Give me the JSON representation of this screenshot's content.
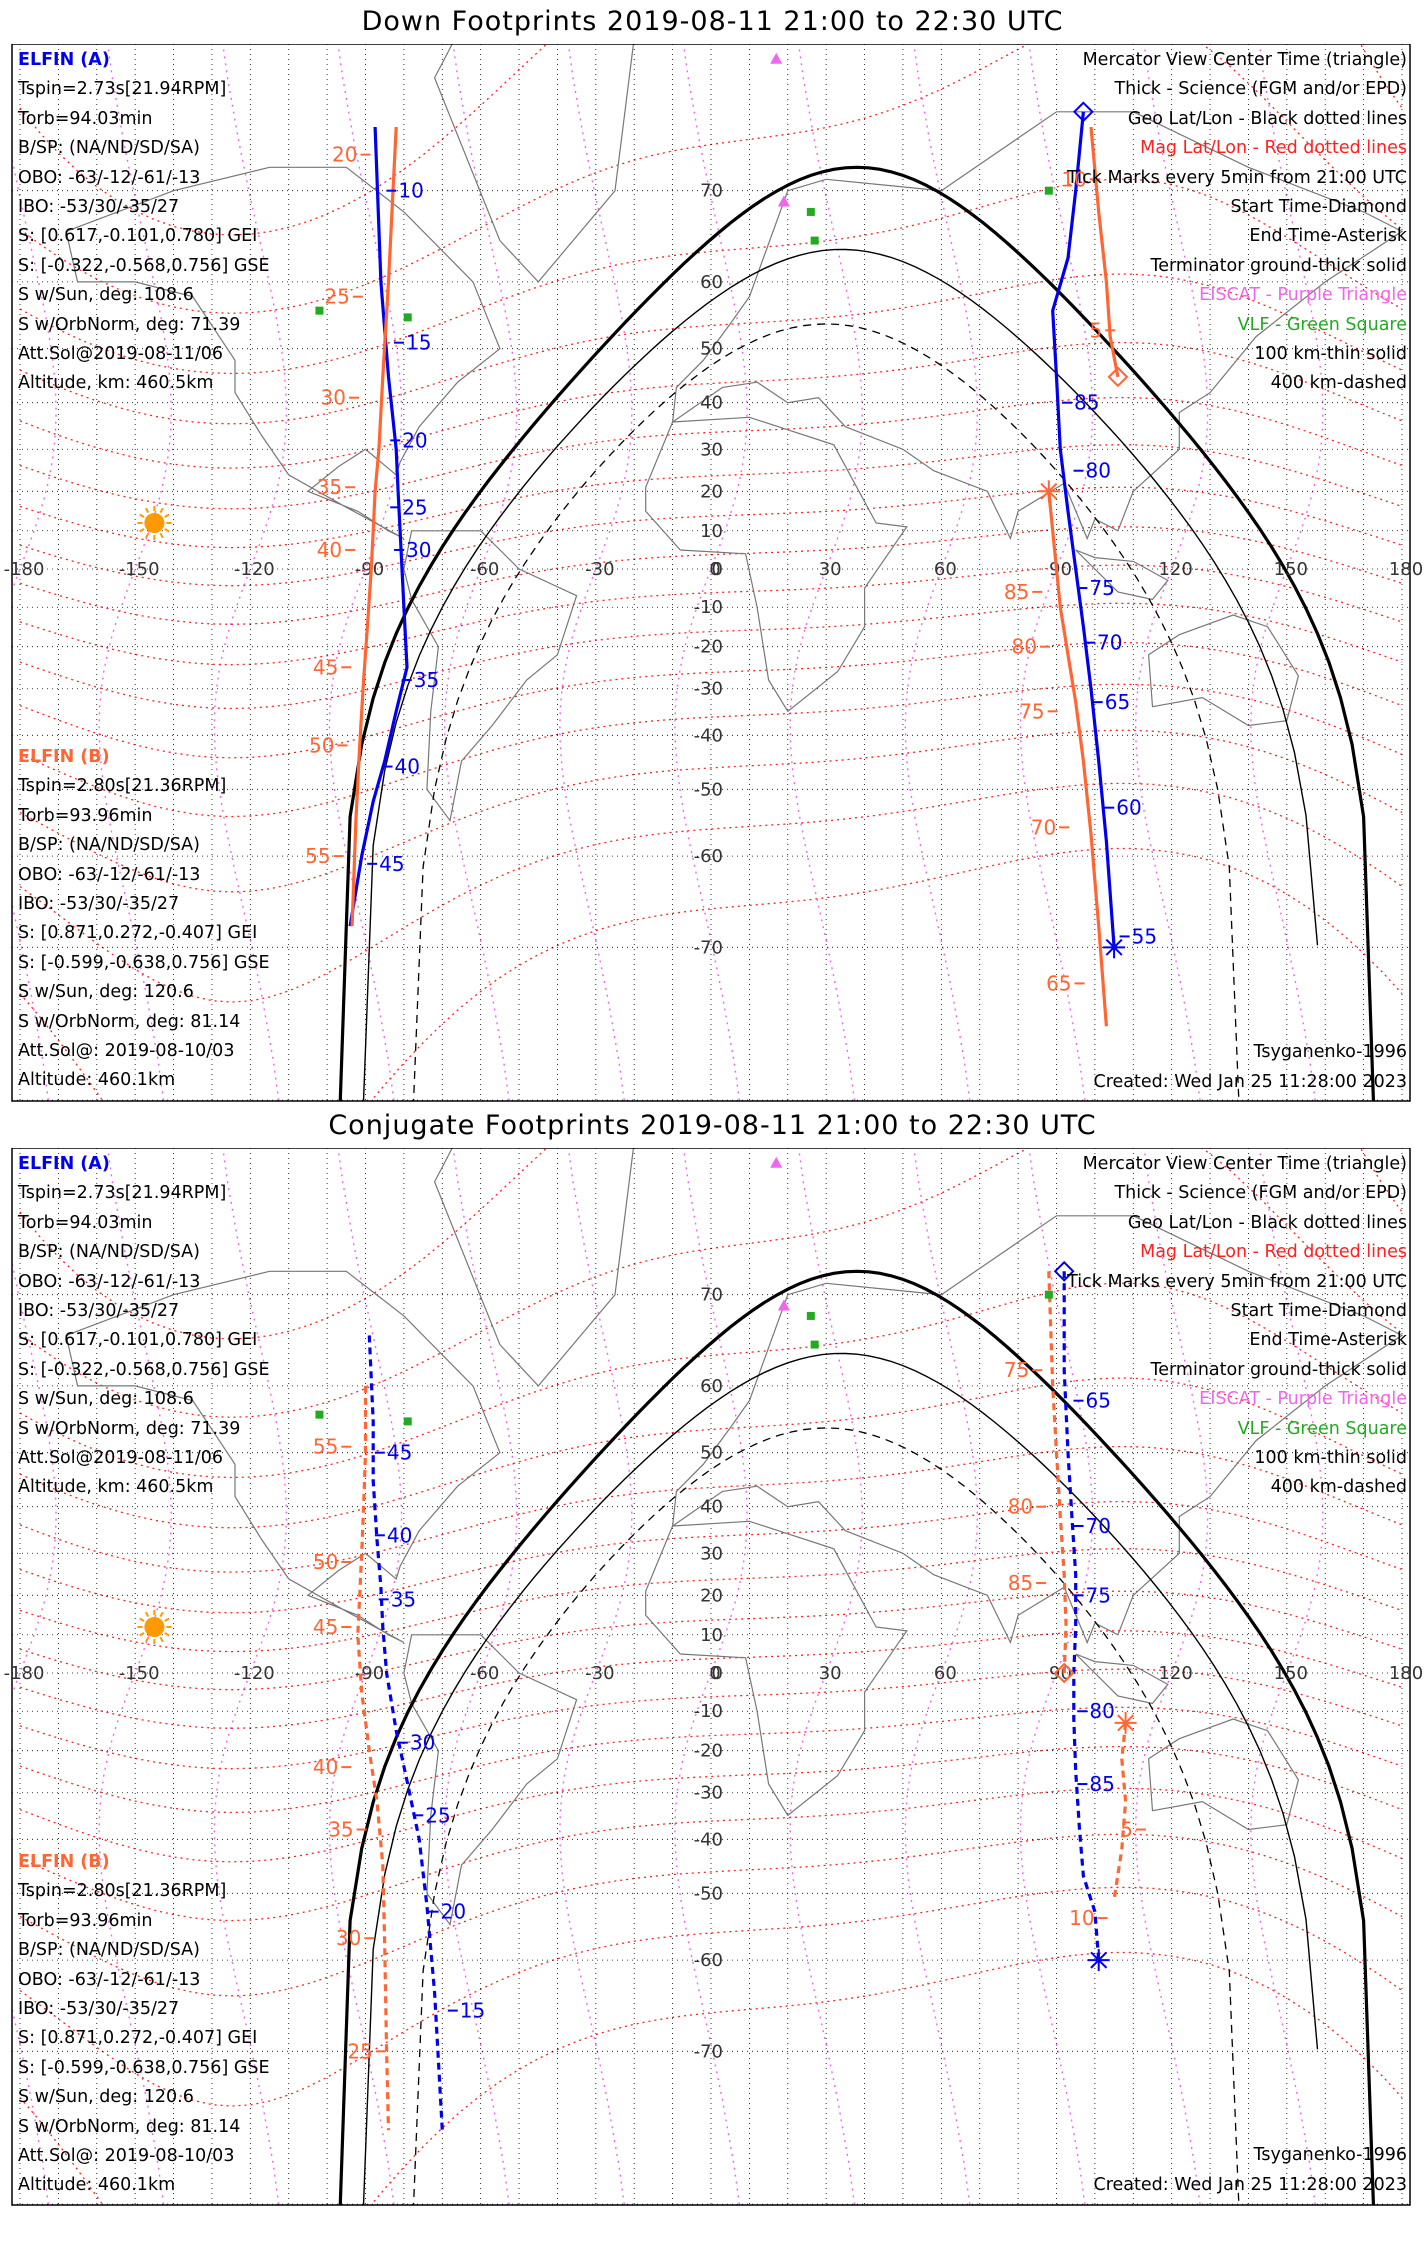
{
  "colors": {
    "mag": "#ff2020",
    "geo": "#000000",
    "esca": "#ee66ee",
    "vlf": "#22aa22",
    "elfin_a": "#0000ee",
    "elfin_b": "#ff6633",
    "sun": "#ff9900",
    "land": "#777777"
  },
  "panels": [
    {
      "title": "Down Footprints 2019-08-11 21:00 to 22:30 UTC",
      "info_a": [
        "ELFIN (A)",
        "Tspin=2.73s[21.94RPM]",
        "Torb=94.03min",
        "B/SP: (NA/ND/SD/SA)",
        "OBO: -63/-12/-61/-13",
        "IBO: -53/30/-35/27",
        "S: [0.617,-0.101,0.780] GEI",
        "S: [-0.322,-0.568,0.756] GSE",
        "S w/Sun, deg: 108.6",
        "S w/OrbNorm, deg: 71.39",
        "Att.Sol@2019-08-11/06",
        "Altitude, km: 460.5km"
      ],
      "info_b": [
        "ELFIN (B)",
        "Tspin=2.80s[21.36RPM]",
        "Torb=93.96min",
        "B/SP: (NA/ND/SD/SA)",
        "OBO: -63/-12/-61/-13",
        "IBO: -53/30/-35/27",
        "S: [0.871,0.272,-0.407] GEI",
        "S: [-0.599,-0.638,0.756] GSE",
        "S w/Sun, deg: 120.6",
        "S w/OrbNorm, deg: 81.14",
        "Att.Sol@: 2019-08-10/03",
        "Altitude: 460.1km"
      ],
      "legend": [
        "Mercator View Center Time (triangle)",
        "Thick - Science (FGM and/or EPD)",
        "Geo Lat/Lon - Black dotted lines",
        "Mag Lat/Lon - Red dotted lines",
        "Tick Marks every 5min from 21:00 UTC",
        "Start Time-Diamond",
        "End Time-Asterisk",
        "Terminator ground-thick solid",
        "EISCAT - Purple Triangle",
        "VLF - Green Square",
        "100 km-thin solid",
        "400 km-dashed"
      ],
      "model": "Tsyganenko-1996",
      "created": "Created: Wed Jan 25 11:28:00 2023",
      "lon_labels": [
        "-180",
        "-150",
        "-120",
        "-90",
        "-60",
        "-30",
        "0",
        "30",
        "60",
        "90",
        "120",
        "150",
        "180"
      ],
      "lat_labels": [
        "70",
        "60",
        "50",
        "40",
        "30",
        "20",
        "10",
        "0",
        "-10",
        "-20",
        "-30",
        "-40",
        "-50",
        "-60",
        "-70"
      ],
      "track_a_path": [
        [
          -87.5,
          75
        ],
        [
          -86,
          60
        ],
        [
          -84,
          45
        ],
        [
          -82,
          30
        ],
        [
          -81.5,
          20
        ],
        [
          -81,
          10
        ],
        [
          -80.5,
          0
        ],
        [
          -80,
          -10
        ],
        [
          -79.2,
          -25
        ],
        [
          -82,
          -35
        ],
        [
          -85,
          -45
        ],
        [
          -88,
          -52
        ],
        [
          -91,
          -60
        ],
        [
          -94,
          -68
        ]
      ],
      "track_b_path": [
        [
          -82,
          75
        ],
        [
          -84,
          60
        ],
        [
          -85.5,
          45
        ],
        [
          -86.5,
          30
        ],
        [
          -87.5,
          20
        ],
        [
          -88,
          10
        ],
        [
          -88.5,
          0
        ],
        [
          -89.5,
          -15
        ],
        [
          -90.5,
          -28
        ],
        [
          -91.5,
          -42
        ],
        [
          -92.5,
          -55
        ],
        [
          -93.5,
          -68
        ]
      ],
      "track_a2_path": [
        [
          97,
          76
        ],
        [
          95,
          70
        ],
        [
          93,
          63
        ],
        [
          89,
          56
        ],
        [
          90,
          45
        ],
        [
          91,
          30
        ],
        [
          93,
          15
        ],
        [
          95,
          0
        ],
        [
          97,
          -15
        ],
        [
          99,
          -30
        ],
        [
          101,
          -45
        ],
        [
          103,
          -58
        ],
        [
          105,
          -70
        ]
      ],
      "track_b2_path": [
        [
          99,
          75
        ],
        [
          101,
          68
        ],
        [
          103,
          60
        ],
        [
          104,
          52
        ],
        [
          106,
          45
        ]
      ],
      "track_b3_path": [
        [
          88,
          20
        ],
        [
          89,
          10
        ],
        [
          90,
          0
        ],
        [
          91,
          -10
        ],
        [
          93,
          -22
        ],
        [
          95,
          -33
        ],
        [
          97,
          -45
        ],
        [
          99,
          -57
        ],
        [
          101,
          -68
        ],
        [
          103,
          -76
        ]
      ],
      "ticks_a": [
        {
          "label": "10",
          "lon": -83,
          "lat": 70
        },
        {
          "label": "15",
          "lon": -81,
          "lat": 51
        },
        {
          "label": "20",
          "lon": -82,
          "lat": 32
        },
        {
          "label": "25",
          "lon": -82,
          "lat": 16
        },
        {
          "label": "30",
          "lon": -81,
          "lat": 5
        },
        {
          "label": "35",
          "lon": -79,
          "lat": -28
        },
        {
          "label": "40",
          "lon": -84,
          "lat": -46
        },
        {
          "label": "45",
          "lon": -88,
          "lat": -61
        },
        {
          "label": "85",
          "lon": 93,
          "lat": 40
        },
        {
          "label": "80",
          "lon": 96,
          "lat": 25
        },
        {
          "label": "75",
          "lon": 97,
          "lat": -5
        },
        {
          "label": "70",
          "lon": 99,
          "lat": -19
        },
        {
          "label": "65",
          "lon": 101,
          "lat": -33
        },
        {
          "label": "60",
          "lon": 104,
          "lat": -53
        },
        {
          "label": "55",
          "lon": 108,
          "lat": -69
        }
      ],
      "ticks_b": [
        {
          "label": "20",
          "lon": -90,
          "lat": 73
        },
        {
          "label": "25",
          "lon": -92,
          "lat": 58
        },
        {
          "label": "30",
          "lon": -93,
          "lat": 41
        },
        {
          "label": "35",
          "lon": -94,
          "lat": 21
        },
        {
          "label": "40",
          "lon": -94,
          "lat": 5
        },
        {
          "label": "45",
          "lon": -95,
          "lat": -25
        },
        {
          "label": "50",
          "lon": -96,
          "lat": -42
        },
        {
          "label": "55",
          "lon": -97,
          "lat": -60
        },
        {
          "label": "10",
          "lon": 100,
          "lat": 71
        },
        {
          "label": "5",
          "lon": 104,
          "lat": 53
        },
        {
          "label": "85",
          "lon": 85,
          "lat": -6
        },
        {
          "label": "80",
          "lon": 87,
          "lat": -20
        },
        {
          "label": "75",
          "lon": 89,
          "lat": -35
        },
        {
          "label": "70",
          "lon": 92,
          "lat": -56
        },
        {
          "label": "65",
          "lon": 96,
          "lat": -73
        }
      ],
      "sun": {
        "lon": -145,
        "lat": 12
      },
      "esca": [
        {
          "lon": 17,
          "lat": 79
        },
        {
          "lon": 19,
          "lat": 69
        }
      ],
      "vlf": [
        {
          "lon": 26,
          "lat": 68
        },
        {
          "lon": 27,
          "lat": 65
        },
        {
          "lon": 88,
          "lat": 70
        },
        {
          "lon": -102,
          "lat": 56
        },
        {
          "lon": -79,
          "lat": 55
        }
      ]
    },
    {
      "title": "Conjugate Footprints 2019-08-11 21:00 to 22:30 UTC",
      "info_a": [
        "ELFIN (A)",
        "Tspin=2.73s[21.94RPM]",
        "Torb=94.03min",
        "B/SP: (NA/ND/SD/SA)",
        "OBO: -63/-12/-61/-13",
        "IBO: -53/30/-35/27",
        "S: [0.617,-0.101,0.780] GEI",
        "S: [-0.322,-0.568,0.756] GSE",
        "S w/Sun, deg: 108.6",
        "S w/OrbNorm, deg: 71.39",
        "Att.Sol@2019-08-11/06",
        "Altitude, km: 460.5km"
      ],
      "info_b": [
        "ELFIN (B)",
        "Tspin=2.80s[21.36RPM]",
        "Torb=93.96min",
        "B/SP: (NA/ND/SD/SA)",
        "OBO: -63/-12/-61/-13",
        "IBO: -53/30/-35/27",
        "S: [0.871,0.272,-0.407] GEI",
        "S: [-0.599,-0.638,0.756] GSE",
        "S w/Sun, deg: 120.6",
        "S w/OrbNorm, deg: 81.14",
        "Att.Sol@: 2019-08-10/03",
        "Altitude: 460.1km"
      ],
      "legend": [
        "Mercator View Center Time (triangle)",
        "Thick - Science (FGM and/or EPD)",
        "Geo Lat/Lon - Black dotted lines",
        "Mag Lat/Lon - Red dotted lines",
        "Tick Marks every 5min from 21:00 UTC",
        "Start Time-Diamond",
        "End Time-Asterisk",
        "Terminator ground-thick solid",
        "EISCAT - Purple Triangle",
        "VLF - Green Square",
        "100 km-thin solid",
        "400 km-dashed"
      ],
      "model": "Tsyganenko-1996",
      "created": "Created: Wed Jan 25 11:28:00 2023",
      "lon_labels": [
        "-180",
        "-150",
        "-120",
        "-90",
        "-60",
        "-30",
        "0",
        "30",
        "60",
        "90",
        "120",
        "150",
        "180"
      ],
      "lat_labels": [
        "70",
        "60",
        "50",
        "40",
        "30",
        "20",
        "10",
        "0",
        "-10",
        "-20",
        "-30",
        "-40",
        "-50",
        "-60",
        "-70"
      ],
      "track_a_path": [
        [
          -89,
          66
        ],
        [
          -88,
          55
        ],
        [
          -88,
          45
        ],
        [
          -87,
          33
        ],
        [
          -86,
          22
        ],
        [
          -85.5,
          12
        ],
        [
          -84.5,
          0
        ],
        [
          -82,
          -15
        ],
        [
          -79,
          -28
        ],
        [
          -76,
          -40
        ],
        [
          -74,
          -52
        ],
        [
          -72,
          -64
        ],
        [
          -70,
          -76
        ]
      ],
      "track_b_path": [
        [
          -90,
          60
        ],
        [
          -90,
          50
        ],
        [
          -90.5,
          40
        ],
        [
          -91,
          30
        ],
        [
          -91.5,
          20
        ],
        [
          -92,
          10
        ],
        [
          -91,
          -5
        ],
        [
          -89,
          -20
        ],
        [
          -87,
          -32
        ],
        [
          -85.5,
          -45
        ],
        [
          -85,
          -58
        ],
        [
          -84.5,
          -70
        ],
        [
          -84,
          -76
        ]
      ],
      "track_a2_path": [
        [
          92,
          72
        ],
        [
          92,
          62
        ],
        [
          93,
          50
        ],
        [
          94,
          38
        ],
        [
          95,
          25
        ],
        [
          95,
          12
        ],
        [
          94.5,
          0
        ],
        [
          94.5,
          -12
        ],
        [
          95,
          -25
        ],
        [
          96,
          -38
        ],
        [
          97,
          -47
        ],
        [
          100,
          -53
        ],
        [
          101,
          -60
        ]
      ],
      "track_b2_path": [
        [
          88,
          72
        ],
        [
          89,
          60
        ],
        [
          90,
          50
        ],
        [
          91,
          38
        ],
        [
          92,
          25
        ],
        [
          92.5,
          12
        ],
        [
          92,
          0
        ]
      ],
      "track_b3_path": [
        [
          108,
          -13
        ],
        [
          107,
          -22
        ],
        [
          108,
          -32
        ],
        [
          107,
          -42
        ],
        [
          105,
          -51
        ]
      ],
      "ticks_a": [
        {
          "label": "45",
          "lon": -86,
          "lat": 50
        },
        {
          "label": "40",
          "lon": -86,
          "lat": 34
        },
        {
          "label": "35",
          "lon": -85,
          "lat": 19
        },
        {
          "label": "30",
          "lon": -80,
          "lat": -18
        },
        {
          "label": "25",
          "lon": -76,
          "lat": -35
        },
        {
          "label": "20",
          "lon": -72,
          "lat": -53
        },
        {
          "label": "15",
          "lon": -67,
          "lat": -66
        },
        {
          "label": "65",
          "lon": 96,
          "lat": 58
        },
        {
          "label": "70",
          "lon": 96,
          "lat": 36
        },
        {
          "label": "75",
          "lon": 96,
          "lat": 20
        },
        {
          "label": "80",
          "lon": 97,
          "lat": -10
        },
        {
          "label": "85",
          "lon": 97,
          "lat": -28
        }
      ],
      "ticks_b": [
        {
          "label": "55",
          "lon": -95,
          "lat": 51
        },
        {
          "label": "50",
          "lon": -95,
          "lat": 28
        },
        {
          "label": "45",
          "lon": -95,
          "lat": 12
        },
        {
          "label": "40",
          "lon": -95,
          "lat": -24
        },
        {
          "label": "35",
          "lon": -91,
          "lat": -38
        },
        {
          "label": "30",
          "lon": -89,
          "lat": -57
        },
        {
          "label": "25",
          "lon": -86,
          "lat": -70
        },
        {
          "label": "75",
          "lon": 85,
          "lat": 62
        },
        {
          "label": "80",
          "lon": 86,
          "lat": 40
        },
        {
          "label": "85",
          "lon": 86,
          "lat": 23
        },
        {
          "label": "5",
          "lon": 112,
          "lat": -38
        },
        {
          "label": "10",
          "lon": 102,
          "lat": -54
        }
      ],
      "sun": {
        "lon": -145,
        "lat": 12
      },
      "esca": [
        {
          "lon": 17,
          "lat": 79
        },
        {
          "lon": 19,
          "lat": 69
        }
      ],
      "vlf": [
        {
          "lon": 26,
          "lat": 68
        },
        {
          "lon": 27,
          "lat": 65
        },
        {
          "lon": 88,
          "lat": 70
        },
        {
          "lon": -102,
          "lat": 56
        },
        {
          "lon": -79,
          "lat": 55
        }
      ]
    }
  ]
}
